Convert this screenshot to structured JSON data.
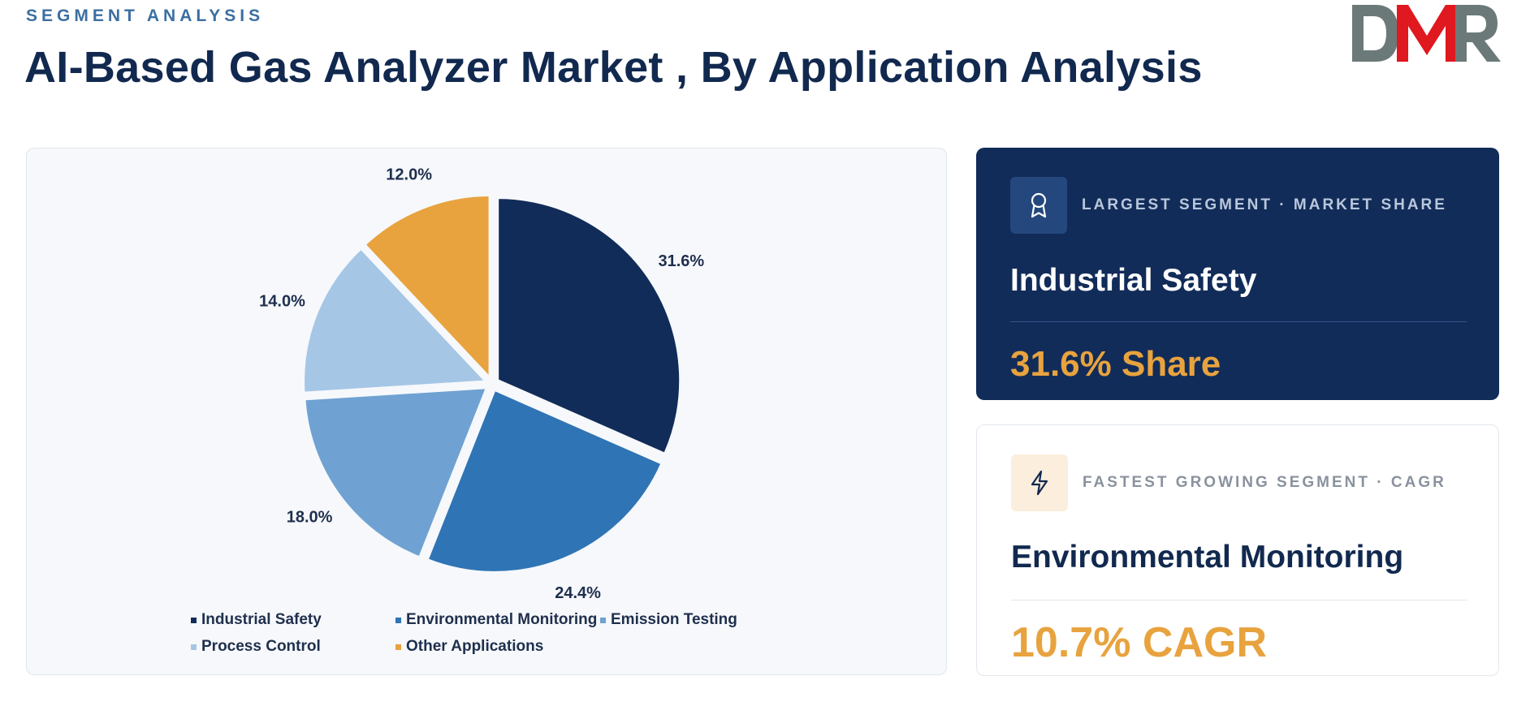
{
  "header": {
    "eyebrow": "SEGMENT ANALYSIS",
    "title": "AI-Based Gas Analyzer Market , By Application Analysis",
    "logo_text": "DMR"
  },
  "chart_data": {
    "type": "pie",
    "categories": [
      "Industrial Safety",
      "Environmental Monitoring",
      "Emission Testing",
      "Process Control",
      "Other Applications"
    ],
    "values": [
      31.6,
      24.4,
      18.0,
      14.0,
      12.0
    ],
    "labels": [
      "31.6%",
      "24.4%",
      "18.0%",
      "14.0%",
      "12.0%"
    ],
    "colors": [
      "#122c59",
      "#2f74b5",
      "#6fa2d2",
      "#a6c6e6",
      "#e8a33e"
    ],
    "legend_position": "bottom"
  },
  "cards": {
    "largest": {
      "label": "LARGEST SEGMENT  ·  MARKET SHARE",
      "name": "Industrial Safety",
      "value": "31.6% Share",
      "icon": "award-icon"
    },
    "fastest": {
      "label": "FASTEST GROWING SEGMENT  ·  CAGR",
      "name": "Environmental Monitoring",
      "value": "10.7% CAGR",
      "icon": "lightning-icon"
    }
  }
}
